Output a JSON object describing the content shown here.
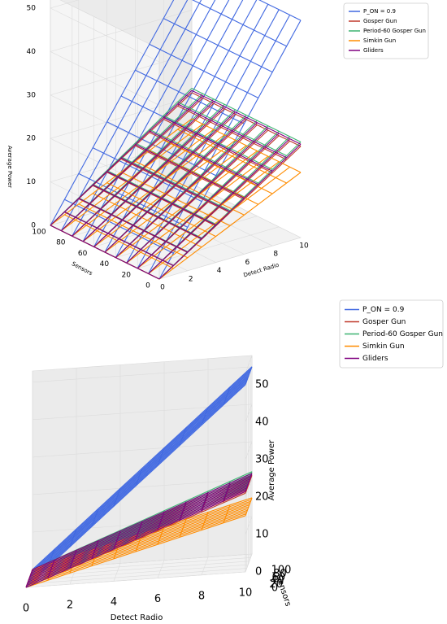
{
  "chart_data": [
    {
      "type": "surface3d-wireframe",
      "view": "oblique",
      "title": "",
      "xlabel": "Detect Radio",
      "ylabel": "Sensors",
      "zlabel": "Average Power",
      "x_ticks": [
        "0",
        "2",
        "4",
        "6",
        "8",
        "10"
      ],
      "y_ticks": [
        "0",
        "20",
        "40",
        "60",
        "80",
        "100"
      ],
      "z_ticks": [
        "0",
        "10",
        "20",
        "30",
        "40",
        "50"
      ],
      "xlim": [
        0,
        10
      ],
      "ylim": [
        0,
        100
      ],
      "zlim": [
        0,
        53
      ],
      "legend_position": "top-right",
      "series": [
        {
          "name": "P_ON = 0.9",
          "color": "#4169e1",
          "z_at_x0": 0,
          "z_at_x10": 50
        },
        {
          "name": "Gosper Gun",
          "color": "#c0392b",
          "z_at_x0": 0,
          "z_at_x10": 21
        },
        {
          "name": "Period-60 Gosper Gun",
          "color": "#3cb371",
          "z_at_x0": 0,
          "z_at_x10": 22
        },
        {
          "name": "Simkin Gun",
          "color": "#ff8c00",
          "z_at_x0": 0,
          "z_at_x10": 15
        },
        {
          "name": "Gliders",
          "color": "#800080",
          "z_at_x0": 0,
          "z_at_x10": 21.5
        }
      ]
    },
    {
      "type": "surface3d-wireframe",
      "view": "side",
      "title": "",
      "xlabel": "Detect Radio",
      "ylabel": "Sensors",
      "zlabel": "Average Power",
      "x_ticks": [
        "0",
        "2",
        "4",
        "6",
        "8",
        "10"
      ],
      "y_ticks": [
        "0",
        "20",
        "40",
        "60",
        "80",
        "100"
      ],
      "z_ticks": [
        "0",
        "10",
        "20",
        "30",
        "40",
        "50"
      ],
      "xlim": [
        0,
        10
      ],
      "ylim": [
        0,
        100
      ],
      "zlim": [
        0,
        53
      ],
      "legend_position": "top-right",
      "series": [
        {
          "name": "P_ON = 0.9",
          "color": "#4169e1",
          "z_at_x0": 0,
          "z_at_x10": 50
        },
        {
          "name": "Gosper Gun",
          "color": "#c0392b",
          "z_at_x0": 0,
          "z_at_x10": 21
        },
        {
          "name": "Period-60 Gosper Gun",
          "color": "#3cb371",
          "z_at_x0": 0,
          "z_at_x10": 22
        },
        {
          "name": "Simkin Gun",
          "color": "#ff8c00",
          "z_at_x0": 0,
          "z_at_x10": 15
        },
        {
          "name": "Gliders",
          "color": "#800080",
          "z_at_x0": 0,
          "z_at_x10": 21.5
        }
      ]
    }
  ]
}
